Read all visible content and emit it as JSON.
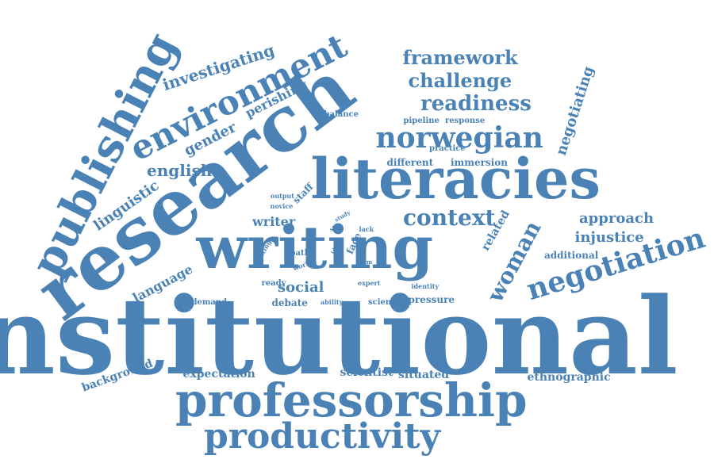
{
  "colors": {
    "word": "#4a82b6",
    "background": "#ffffff"
  },
  "words": [
    {
      "id": "institutional",
      "text": "institutional"
    },
    {
      "id": "research",
      "text": "research"
    },
    {
      "id": "writing",
      "text": "writing"
    },
    {
      "id": "literacies",
      "text": "literacies"
    },
    {
      "id": "professorship",
      "text": "professorship"
    },
    {
      "id": "productivity",
      "text": "productivity"
    },
    {
      "id": "publishing",
      "text": "publishing"
    },
    {
      "id": "environment",
      "text": "environment"
    },
    {
      "id": "norwegian",
      "text": "norwegian"
    },
    {
      "id": "negotiation",
      "text": "negotiation"
    },
    {
      "id": "context",
      "text": "context"
    },
    {
      "id": "woman",
      "text": "woman"
    },
    {
      "id": "framework",
      "text": "framework"
    },
    {
      "id": "challenge",
      "text": "challenge"
    },
    {
      "id": "readiness",
      "text": "readiness"
    },
    {
      "id": "investigating",
      "text": "investigating"
    },
    {
      "id": "english",
      "text": "english"
    },
    {
      "id": "gender",
      "text": "gender"
    },
    {
      "id": "perishing",
      "text": "perishing"
    },
    {
      "id": "linguistic",
      "text": "linguistic"
    },
    {
      "id": "language",
      "text": "language"
    },
    {
      "id": "negotiating",
      "text": "negotiating"
    },
    {
      "id": "approach",
      "text": "approach"
    },
    {
      "id": "injustice",
      "text": "injustice"
    },
    {
      "id": "additional",
      "text": "additional"
    },
    {
      "id": "related",
      "text": "related"
    },
    {
      "id": "writer",
      "text": "writer"
    },
    {
      "id": "social",
      "text": "social"
    },
    {
      "id": "ethnographic",
      "text": "ethnographic"
    },
    {
      "id": "background",
      "text": "background"
    },
    {
      "id": "expectation",
      "text": "expectation"
    },
    {
      "id": "scientist",
      "text": "scientist"
    },
    {
      "id": "situated",
      "text": "situated"
    },
    {
      "id": "different",
      "text": "different"
    },
    {
      "id": "immersion",
      "text": "immersion"
    },
    {
      "id": "balance",
      "text": "balance"
    },
    {
      "id": "pipeline",
      "text": "pipeline"
    },
    {
      "id": "response",
      "text": "response"
    },
    {
      "id": "practice",
      "text": "practice"
    },
    {
      "id": "staff",
      "text": "staff"
    },
    {
      "id": "output",
      "text": "output"
    },
    {
      "id": "novice",
      "text": "novice"
    },
    {
      "id": "study",
      "text": "study"
    },
    {
      "id": "site",
      "text": "site"
    },
    {
      "id": "lack",
      "text": "lack"
    },
    {
      "id": "face",
      "text": "face"
    },
    {
      "id": "ideal",
      "text": "ideal"
    },
    {
      "id": "term",
      "text": "term"
    },
    {
      "id": "setting",
      "text": "setting"
    },
    {
      "id": "path",
      "text": "path"
    },
    {
      "id": "work",
      "text": "work"
    },
    {
      "id": "ready",
      "text": "ready"
    },
    {
      "id": "expert",
      "text": "expert"
    },
    {
      "id": "identity",
      "text": "identity"
    },
    {
      "id": "demand",
      "text": "demand"
    },
    {
      "id": "debate",
      "text": "debate"
    },
    {
      "id": "ability",
      "text": "ability"
    },
    {
      "id": "science",
      "text": "science"
    },
    {
      "id": "pressure",
      "text": "pressure"
    }
  ]
}
